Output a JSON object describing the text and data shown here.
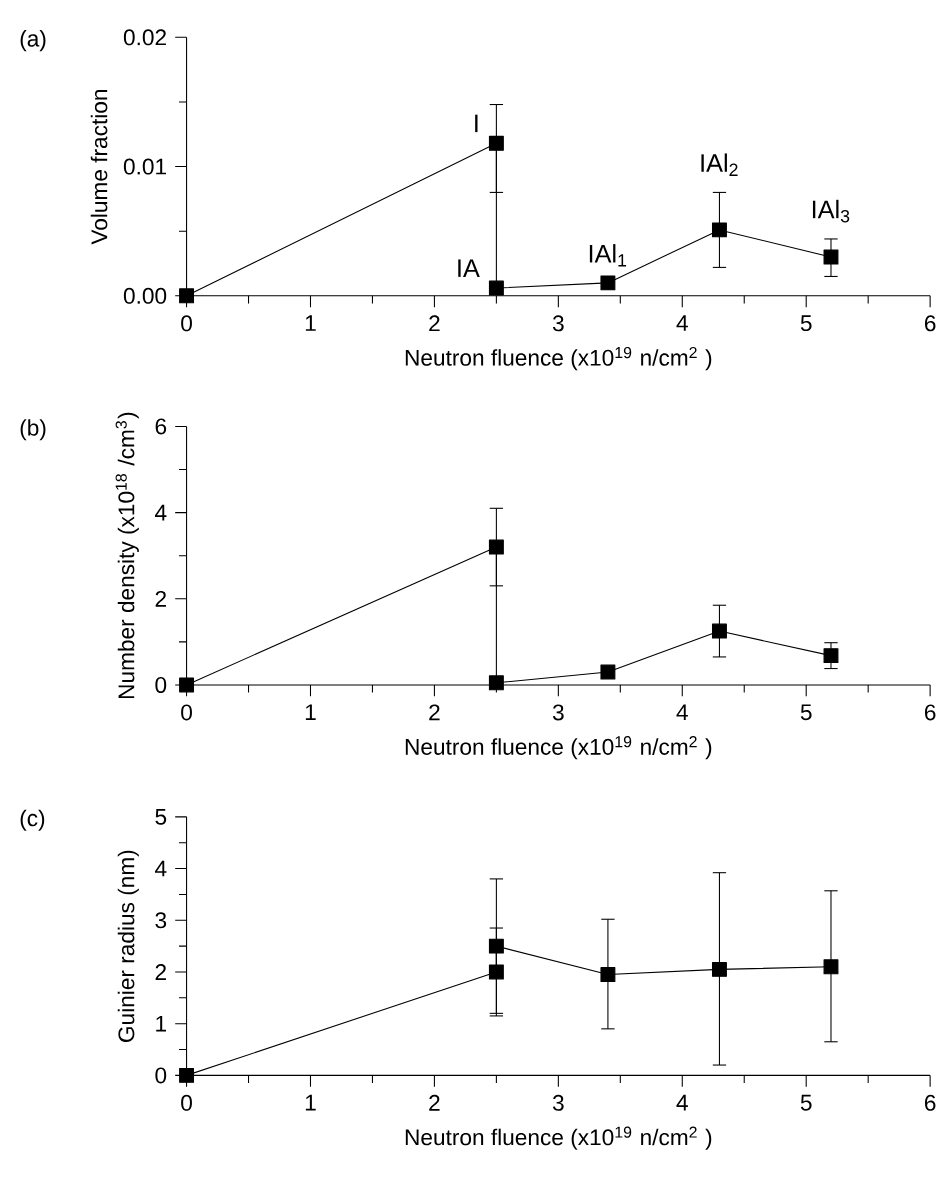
{
  "chart_data": [
    {
      "type": "line",
      "title": "(a)",
      "xlabel": "Neutron fluence (x10$^{19}$ n/cm$^{2}$ )",
      "ylabel": "Volume fraction",
      "x": [
        0,
        2.5,
        2.5,
        3.4,
        4.3,
        5.2
      ],
      "values": [
        0,
        0.0118,
        0.0006,
        0.001,
        0.0051,
        0.003
      ],
      "errors": [
        null,
        [
          0.008,
          0.0148
        ],
        null,
        null,
        [
          0.0022,
          0.008
        ],
        [
          0.0015,
          0.0044
        ]
      ],
      "color": "#000000",
      "marker": "square",
      "line_style": "solid",
      "xlim": [
        0,
        6
      ],
      "xticks": [
        0,
        1,
        2,
        3,
        4,
        5,
        6
      ],
      "ylim": [
        0,
        0.02
      ],
      "yticks": [
        {
          "value": 0,
          "label": "0.00"
        },
        {
          "value": 0.01,
          "label": "0.01"
        },
        {
          "value": 0.02,
          "label": "0.02"
        }
      ],
      "annotations": [
        {
          "text": "I",
          "x": 2.5,
          "y": 0.0118
        },
        {
          "text": "IA",
          "x": 2.5,
          "y": 0.0006
        },
        {
          "text": "IAl$_{1}$",
          "x": 3.4,
          "y": 0.001
        },
        {
          "text": "IAl$_{2}$",
          "x": 4.3,
          "y": 0.008
        },
        {
          "text": "IAl$_{3}$",
          "x": 5.2,
          "y": 0.0044
        }
      ]
    },
    {
      "type": "line",
      "title": "(b)",
      "xlabel": "Neutron fluence (x10$^{19}$ n/cm$^{2}$ )",
      "ylabel": "Number density (x10$^{18}$ /cm$^{3}$)",
      "x": [
        0,
        2.5,
        2.5,
        3.4,
        4.3,
        5.2
      ],
      "values": [
        0,
        3.2,
        0.05,
        0.3,
        1.25,
        0.68
      ],
      "errors": [
        null,
        [
          2.3,
          4.1
        ],
        null,
        null,
        [
          0.65,
          1.85
        ],
        [
          0.38,
          0.98
        ]
      ],
      "color": "#000000",
      "marker": "square",
      "line_style": "solid",
      "xlim": [
        0,
        6
      ],
      "xticks": [
        0,
        1,
        2,
        3,
        4,
        5,
        6
      ],
      "ylim": [
        0,
        6
      ],
      "yticks": [
        0,
        2,
        4,
        6
      ]
    },
    {
      "type": "line",
      "title": "(c)",
      "xlabel": "Neutron fluence (x10$^{19}$ n/cm$^{2}$ )",
      "ylabel": "Guinier radius (nm)",
      "x": [
        0,
        2.5,
        2.5,
        3.4,
        4.3,
        5.2
      ],
      "values": [
        0,
        2.0,
        2.5,
        1.95,
        2.05,
        2.1
      ],
      "errors": [
        null,
        [
          1.15,
          2.85
        ],
        [
          1.2,
          3.8
        ],
        [
          0.9,
          3.02
        ],
        [
          0.2,
          3.92
        ],
        [
          0.65,
          3.57
        ]
      ],
      "color": "#000000",
      "marker": "square",
      "line_style": "solid",
      "xlim": [
        0,
        6
      ],
      "xticks": [
        0,
        1,
        2,
        3,
        4,
        5,
        6
      ],
      "ylim": [
        0,
        5
      ],
      "yticks": [
        0,
        1,
        2,
        3,
        4,
        5
      ]
    }
  ]
}
